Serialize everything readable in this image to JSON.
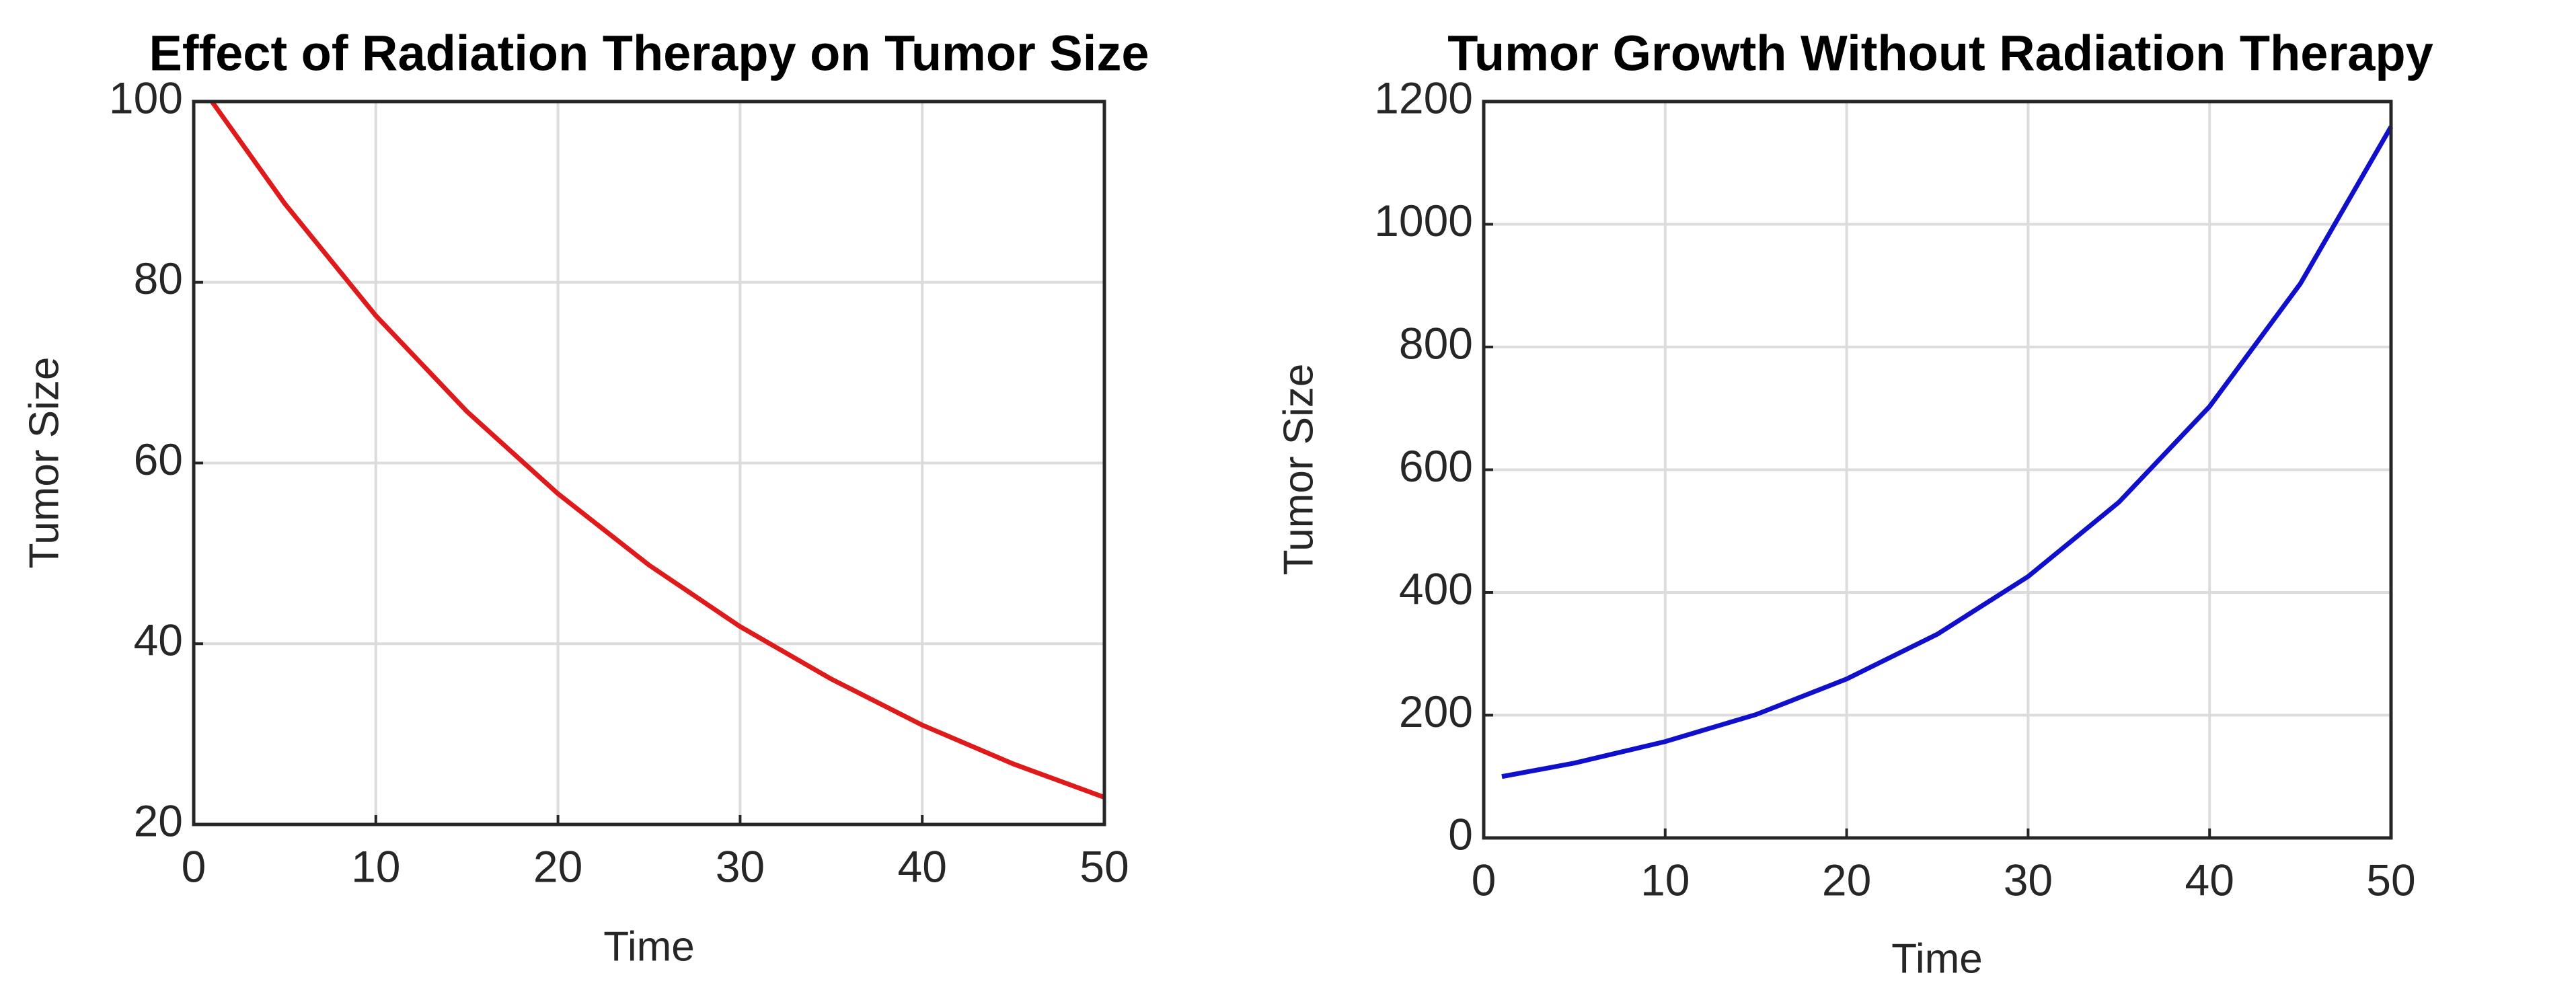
{
  "chart_data": [
    {
      "type": "line",
      "title": "Effect of Radiation Therapy on Tumor Size",
      "x_label": "Time",
      "y_label": "Tumor Size",
      "x": [
        1,
        5,
        10,
        15,
        20,
        25,
        30,
        35,
        40,
        45,
        50
      ],
      "series": [
        {
          "color": "#e0191b",
          "values": [
            100,
            88.7,
            76.3,
            65.7,
            56.6,
            48.7,
            41.9,
            36.1,
            31.0,
            26.7,
            23.0
          ]
        }
      ],
      "xlim": [
        0,
        50
      ],
      "ylim": [
        20,
        100
      ],
      "xticks": [
        0,
        10,
        20,
        30,
        40,
        50
      ],
      "yticks": [
        20,
        40,
        60,
        80,
        100
      ],
      "grid": true
    },
    {
      "type": "line",
      "title": "Tumor Growth Without Radiation Therapy",
      "x_label": "Time",
      "y_label": "Tumor Size",
      "x": [
        1,
        5,
        10,
        15,
        20,
        25,
        30,
        35,
        40,
        45,
        50
      ],
      "series": [
        {
          "color": "#1010cc",
          "values": [
            100,
            122,
            157,
            201,
            259,
            332,
            426,
            547,
            703,
            903,
            1159
          ]
        }
      ],
      "xlim": [
        0,
        50
      ],
      "ylim": [
        0,
        1200
      ],
      "xticks": [
        0,
        10,
        20,
        30,
        40,
        50
      ],
      "yticks": [
        0,
        200,
        400,
        600,
        800,
        1000,
        1200
      ],
      "grid": true
    }
  ]
}
